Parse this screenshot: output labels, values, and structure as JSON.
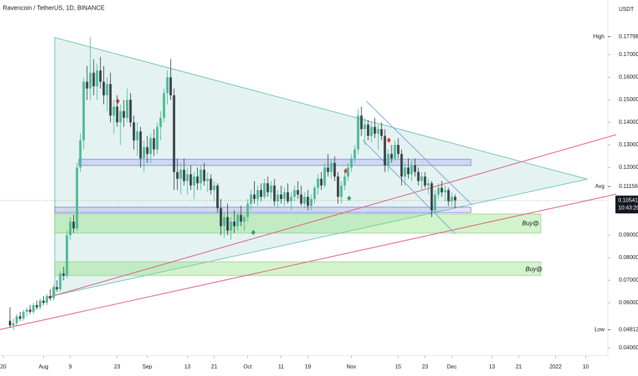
{
  "chart_data": {
    "type": "candlestick",
    "title": "Ravencoin / TetherUS, 1D, BINANCE",
    "currency": "USDT",
    "up_color": "#4cba95",
    "down_color": "#3a3f4a",
    "ylim": [
      0.03667,
      0.19424
    ],
    "xlim": [
      -3,
      177
    ],
    "yticks": [
      {
        "value": 0.17,
        "label": "0.17000"
      },
      {
        "value": 0.16,
        "label": "0.16000"
      },
      {
        "value": 0.15,
        "label": "0.15000"
      },
      {
        "value": 0.14,
        "label": "0.14000"
      },
      {
        "value": 0.13,
        "label": "0.13000"
      },
      {
        "value": 0.12,
        "label": "0.12000"
      },
      {
        "value": 0.09,
        "label": "0.09000"
      },
      {
        "value": 0.08,
        "label": "0.08000"
      },
      {
        "value": 0.07,
        "label": "0.07000"
      },
      {
        "value": 0.06,
        "label": "0.06000"
      },
      {
        "value": 0.04,
        "label": "0.04000"
      }
    ],
    "xticks": [
      {
        "value": -2,
        "label": "20"
      },
      {
        "value": 10,
        "label": "Aug"
      },
      {
        "value": 18,
        "label": "9"
      },
      {
        "value": 32,
        "label": "23"
      },
      {
        "value": 41,
        "label": "Sep"
      },
      {
        "value": 53,
        "label": "13"
      },
      {
        "value": 61,
        "label": "21"
      },
      {
        "value": 71,
        "label": "Oct"
      },
      {
        "value": 81,
        "label": "11"
      },
      {
        "value": 89,
        "label": "19"
      },
      {
        "value": 102,
        "label": "Nov"
      },
      {
        "value": 116,
        "label": "15"
      },
      {
        "value": 124,
        "label": "23"
      },
      {
        "value": 132,
        "label": "Dec"
      },
      {
        "value": 144,
        "label": "13"
      },
      {
        "value": 152,
        "label": "21"
      },
      {
        "value": 163,
        "label": "2022"
      },
      {
        "value": 172,
        "label": "10"
      }
    ],
    "markers": [
      {
        "label": "High",
        "value": 0.17798
      },
      {
        "label": "Avg",
        "value": 0.11156
      },
      {
        "label": "Low",
        "value": 0.04812
      }
    ],
    "last_price": 0.10541,
    "countdown": "10:43:20",
    "zone_labels": [
      "Buy@",
      "Buy@"
    ],
    "ohlc": [
      [
        0.052,
        0.058,
        0.049,
        0.05
      ],
      [
        0.05,
        0.053,
        0.048,
        0.051
      ],
      [
        0.051,
        0.055,
        0.05,
        0.054
      ],
      [
        0.054,
        0.056,
        0.052,
        0.053
      ],
      [
        0.053,
        0.057,
        0.052,
        0.056
      ],
      [
        0.056,
        0.058,
        0.054,
        0.057
      ],
      [
        0.057,
        0.059,
        0.055,
        0.056
      ],
      [
        0.056,
        0.06,
        0.055,
        0.059
      ],
      [
        0.059,
        0.061,
        0.057,
        0.058
      ],
      [
        0.058,
        0.062,
        0.057,
        0.061
      ],
      [
        0.061,
        0.063,
        0.059,
        0.06
      ],
      [
        0.06,
        0.064,
        0.059,
        0.063
      ],
      [
        0.063,
        0.066,
        0.061,
        0.062
      ],
      [
        0.062,
        0.068,
        0.061,
        0.067
      ],
      [
        0.067,
        0.07,
        0.065,
        0.066
      ],
      [
        0.066,
        0.074,
        0.065,
        0.073
      ],
      [
        0.073,
        0.076,
        0.07,
        0.072
      ],
      [
        0.072,
        0.092,
        0.071,
        0.09
      ],
      [
        0.09,
        0.098,
        0.088,
        0.096
      ],
      [
        0.096,
        0.099,
        0.091,
        0.093
      ],
      [
        0.093,
        0.122,
        0.092,
        0.12
      ],
      [
        0.12,
        0.135,
        0.118,
        0.132
      ],
      [
        0.132,
        0.16,
        0.128,
        0.158
      ],
      [
        0.158,
        0.165,
        0.15,
        0.155
      ],
      [
        0.155,
        0.178,
        0.15,
        0.162
      ],
      [
        0.162,
        0.168,
        0.152,
        0.156
      ],
      [
        0.156,
        0.166,
        0.15,
        0.163
      ],
      [
        0.163,
        0.169,
        0.155,
        0.158
      ],
      [
        0.158,
        0.165,
        0.148,
        0.152
      ],
      [
        0.152,
        0.16,
        0.145,
        0.157
      ],
      [
        0.157,
        0.162,
        0.14,
        0.143
      ],
      [
        0.143,
        0.15,
        0.135,
        0.147
      ],
      [
        0.147,
        0.152,
        0.138,
        0.14
      ],
      [
        0.14,
        0.148,
        0.13,
        0.145
      ],
      [
        0.145,
        0.15,
        0.138,
        0.142
      ],
      [
        0.142,
        0.155,
        0.14,
        0.15
      ],
      [
        0.15,
        0.153,
        0.138,
        0.14
      ],
      [
        0.14,
        0.143,
        0.128,
        0.132
      ],
      [
        0.132,
        0.14,
        0.125,
        0.136
      ],
      [
        0.136,
        0.138,
        0.12,
        0.124
      ],
      [
        0.124,
        0.132,
        0.118,
        0.129
      ],
      [
        0.129,
        0.134,
        0.122,
        0.126
      ],
      [
        0.126,
        0.135,
        0.122,
        0.133
      ],
      [
        0.133,
        0.137,
        0.125,
        0.128
      ],
      [
        0.128,
        0.14,
        0.126,
        0.138
      ],
      [
        0.138,
        0.145,
        0.132,
        0.142
      ],
      [
        0.142,
        0.155,
        0.14,
        0.153
      ],
      [
        0.153,
        0.163,
        0.148,
        0.16
      ],
      [
        0.16,
        0.168,
        0.15,
        0.152
      ],
      [
        0.152,
        0.155,
        0.11,
        0.118
      ],
      [
        0.118,
        0.124,
        0.11,
        0.115
      ],
      [
        0.115,
        0.122,
        0.108,
        0.119
      ],
      [
        0.119,
        0.124,
        0.112,
        0.114
      ],
      [
        0.114,
        0.12,
        0.108,
        0.117
      ],
      [
        0.117,
        0.121,
        0.11,
        0.112
      ],
      [
        0.112,
        0.118,
        0.106,
        0.116
      ],
      [
        0.116,
        0.12,
        0.11,
        0.113
      ],
      [
        0.113,
        0.121,
        0.11,
        0.119
      ],
      [
        0.119,
        0.122,
        0.112,
        0.114
      ],
      [
        0.114,
        0.118,
        0.109,
        0.115
      ],
      [
        0.115,
        0.117,
        0.108,
        0.11
      ],
      [
        0.11,
        0.114,
        0.105,
        0.112
      ],
      [
        0.112,
        0.113,
        0.1,
        0.102
      ],
      [
        0.102,
        0.106,
        0.09,
        0.094
      ],
      [
        0.094,
        0.1,
        0.089,
        0.098
      ],
      [
        0.098,
        0.104,
        0.09,
        0.092
      ],
      [
        0.092,
        0.098,
        0.088,
        0.096
      ],
      [
        0.096,
        0.101,
        0.091,
        0.094
      ],
      [
        0.094,
        0.1,
        0.092,
        0.099
      ],
      [
        0.099,
        0.103,
        0.094,
        0.096
      ],
      [
        0.096,
        0.099,
        0.092,
        0.098
      ],
      [
        0.098,
        0.106,
        0.096,
        0.104
      ],
      [
        0.104,
        0.11,
        0.101,
        0.108
      ],
      [
        0.108,
        0.114,
        0.104,
        0.106
      ],
      [
        0.106,
        0.112,
        0.103,
        0.11
      ],
      [
        0.11,
        0.113,
        0.105,
        0.107
      ],
      [
        0.107,
        0.115,
        0.106,
        0.113
      ],
      [
        0.113,
        0.116,
        0.107,
        0.109
      ],
      [
        0.109,
        0.114,
        0.106,
        0.112
      ],
      [
        0.112,
        0.115,
        0.103,
        0.105
      ],
      [
        0.105,
        0.11,
        0.102,
        0.108
      ],
      [
        0.108,
        0.112,
        0.104,
        0.106
      ],
      [
        0.106,
        0.111,
        0.103,
        0.109
      ],
      [
        0.109,
        0.113,
        0.104,
        0.105
      ],
      [
        0.105,
        0.109,
        0.101,
        0.107
      ],
      [
        0.107,
        0.112,
        0.105,
        0.11
      ],
      [
        0.11,
        0.114,
        0.106,
        0.108
      ],
      [
        0.108,
        0.112,
        0.103,
        0.104
      ],
      [
        0.104,
        0.109,
        0.102,
        0.107
      ],
      [
        0.107,
        0.11,
        0.101,
        0.103
      ],
      [
        0.103,
        0.108,
        0.101,
        0.106
      ],
      [
        0.106,
        0.112,
        0.104,
        0.111
      ],
      [
        0.111,
        0.117,
        0.108,
        0.115
      ],
      [
        0.115,
        0.118,
        0.11,
        0.112
      ],
      [
        0.112,
        0.122,
        0.111,
        0.12
      ],
      [
        0.12,
        0.126,
        0.116,
        0.118
      ],
      [
        0.118,
        0.124,
        0.115,
        0.122
      ],
      [
        0.122,
        0.125,
        0.114,
        0.116
      ],
      [
        0.116,
        0.118,
        0.104,
        0.107
      ],
      [
        0.107,
        0.114,
        0.104,
        0.112
      ],
      [
        0.112,
        0.118,
        0.11,
        0.116
      ],
      [
        0.116,
        0.122,
        0.114,
        0.12
      ],
      [
        0.12,
        0.126,
        0.118,
        0.124
      ],
      [
        0.124,
        0.13,
        0.122,
        0.128
      ],
      [
        0.128,
        0.146,
        0.126,
        0.143
      ],
      [
        0.143,
        0.147,
        0.134,
        0.137
      ],
      [
        0.137,
        0.142,
        0.13,
        0.139
      ],
      [
        0.139,
        0.141,
        0.132,
        0.134
      ],
      [
        0.134,
        0.14,
        0.131,
        0.138
      ],
      [
        0.138,
        0.142,
        0.133,
        0.135
      ],
      [
        0.135,
        0.139,
        0.128,
        0.137
      ],
      [
        0.137,
        0.14,
        0.132,
        0.134
      ],
      [
        0.134,
        0.137,
        0.118,
        0.121
      ],
      [
        0.121,
        0.128,
        0.118,
        0.126
      ],
      [
        0.126,
        0.13,
        0.122,
        0.124
      ],
      [
        0.124,
        0.132,
        0.123,
        0.13
      ],
      [
        0.13,
        0.133,
        0.124,
        0.126
      ],
      [
        0.126,
        0.128,
        0.112,
        0.116
      ],
      [
        0.116,
        0.122,
        0.112,
        0.12
      ],
      [
        0.12,
        0.124,
        0.115,
        0.117
      ],
      [
        0.117,
        0.123,
        0.114,
        0.121
      ],
      [
        0.121,
        0.124,
        0.116,
        0.118
      ],
      [
        0.118,
        0.12,
        0.112,
        0.114
      ],
      [
        0.114,
        0.118,
        0.11,
        0.116
      ],
      [
        0.116,
        0.118,
        0.111,
        0.112
      ],
      [
        0.112,
        0.115,
        0.108,
        0.113
      ],
      [
        0.113,
        0.114,
        0.098,
        0.101
      ],
      [
        0.101,
        0.11,
        0.1,
        0.108
      ],
      [
        0.108,
        0.113,
        0.106,
        0.111
      ],
      [
        0.111,
        0.114,
        0.107,
        0.109
      ],
      [
        0.109,
        0.112,
        0.105,
        0.11
      ],
      [
        0.11,
        0.111,
        0.103,
        0.105
      ],
      [
        0.105,
        0.109,
        0.103,
        0.107
      ],
      [
        0.107,
        0.108,
        0.102,
        0.10541
      ]
    ]
  }
}
